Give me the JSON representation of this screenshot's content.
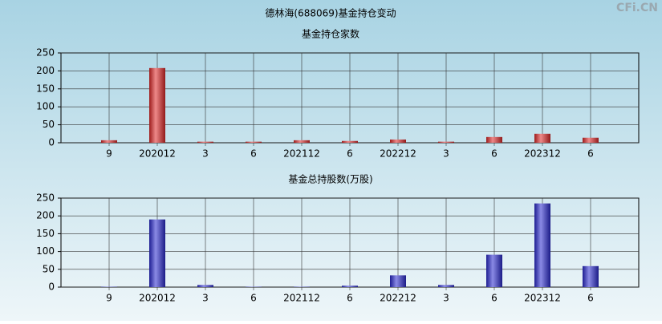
{
  "title": "德林海(688069)基金持仓变动",
  "watermark": "CFi.CN",
  "chart_data": [
    {
      "type": "bar",
      "title": "基金持仓家数",
      "categories": [
        "9",
        "202012",
        "3",
        "6",
        "202112",
        "6",
        "202212",
        "3",
        "6",
        "202312",
        "6"
      ],
      "values": [
        7,
        208,
        3,
        3,
        7,
        5,
        9,
        3,
        16,
        25,
        14
      ],
      "color": "#e02828",
      "ylim": [
        0,
        250
      ],
      "yticks": [
        0,
        50,
        100,
        150,
        200,
        250
      ],
      "grid": true
    },
    {
      "type": "bar",
      "title": "基金总持股数(万股)",
      "categories": [
        "9",
        "202012",
        "3",
        "6",
        "202112",
        "6",
        "202212",
        "3",
        "6",
        "202312",
        "6"
      ],
      "values": [
        1,
        190,
        6,
        1,
        1,
        4,
        33,
        6,
        91,
        235,
        59
      ],
      "color": "#2a2ad0",
      "ylim": [
        0,
        250
      ],
      "yticks": [
        0,
        50,
        100,
        150,
        200,
        250
      ],
      "grid": true
    }
  ]
}
